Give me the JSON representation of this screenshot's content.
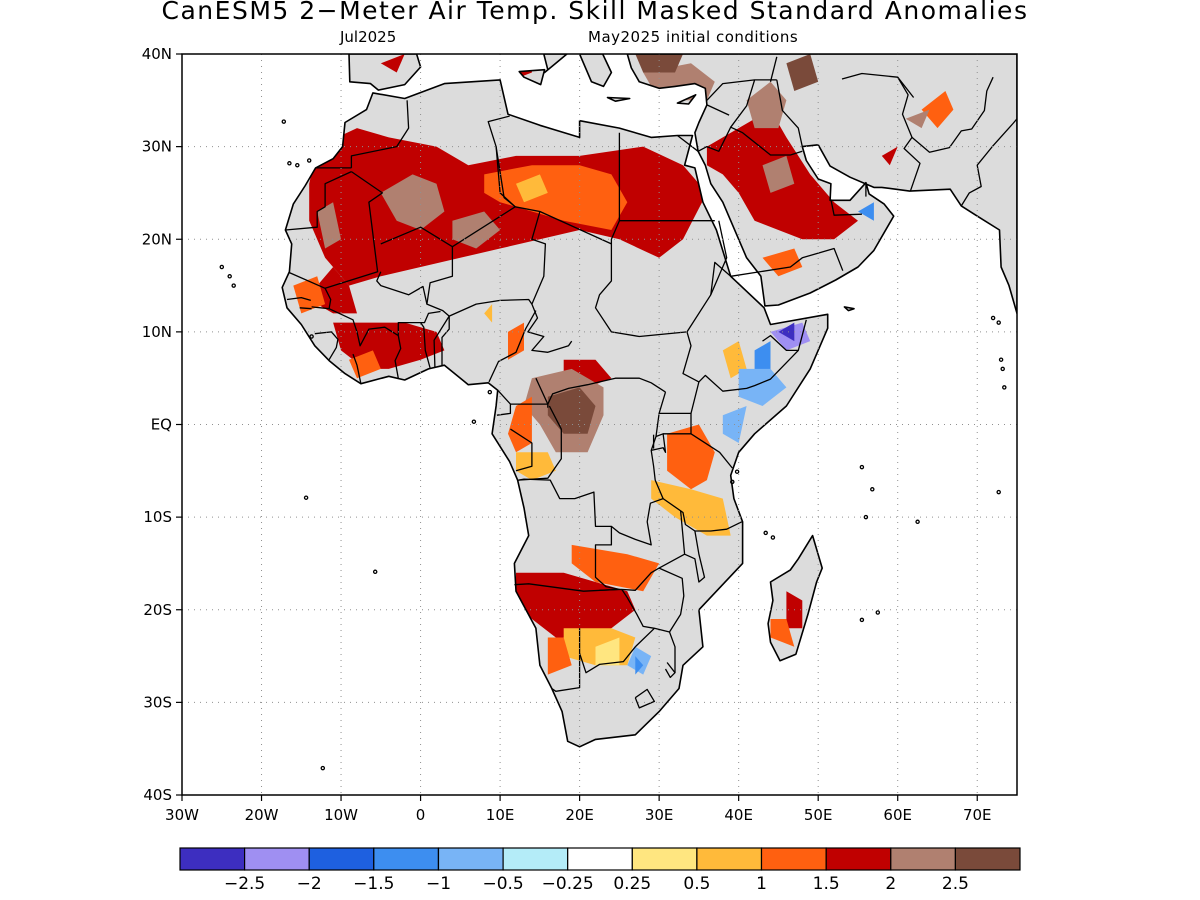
{
  "header": {
    "title": "CanESM5 2−Meter Air Temp. Skill Masked Standard Anomalies",
    "month": "Jul2025",
    "init": "May2025 initial conditions"
  },
  "map": {
    "lat_labels": [
      {
        "lat": 40,
        "label": "40N"
      },
      {
        "lat": 30,
        "label": "30N"
      },
      {
        "lat": 20,
        "label": "20N"
      },
      {
        "lat": 10,
        "label": "10N"
      },
      {
        "lat": 0,
        "label": "EQ"
      },
      {
        "lat": -10,
        "label": "10S"
      },
      {
        "lat": -20,
        "label": "20S"
      },
      {
        "lat": -30,
        "label": "30S"
      },
      {
        "lat": -40,
        "label": "40S"
      }
    ],
    "lon_labels": [
      {
        "lon": -30,
        "label": "30W"
      },
      {
        "lon": -20,
        "label": "20W"
      },
      {
        "lon": -10,
        "label": "10W"
      },
      {
        "lon": 0,
        "label": "0"
      },
      {
        "lon": 10,
        "label": "10E"
      },
      {
        "lon": 20,
        "label": "20E"
      },
      {
        "lon": 30,
        "label": "30E"
      },
      {
        "lon": 40,
        "label": "40E"
      },
      {
        "lon": 50,
        "label": "50E"
      },
      {
        "lon": 60,
        "label": "60E"
      },
      {
        "lon": 70,
        "label": "70E"
      }
    ],
    "colors": {
      "masked": "#dcdcdc",
      "n25": "#3d2ec0",
      "n20": "#9f8ff2",
      "n15": "#1e60e0",
      "n10": "#3d8ef0",
      "n05": "#78b4f6",
      "n025": "#b4ecf8",
      "zero": "#ffffff",
      "p025": "#ffe680",
      "p05": "#ffba3a",
      "p10": "#ff6010",
      "p15": "#c00000",
      "p20": "#b08070",
      "p25": "#7a4a3a"
    },
    "anomaly_regions": [
      {
        "level": "p15",
        "pts": [
          [
            -13,
            30
          ],
          [
            -8,
            32
          ],
          [
            -4,
            31
          ],
          [
            2,
            30
          ],
          [
            6,
            28
          ],
          [
            12,
            29
          ],
          [
            20,
            29
          ],
          [
            28,
            30
          ],
          [
            33,
            28
          ],
          [
            36,
            25
          ],
          [
            33,
            20
          ],
          [
            30,
            18
          ],
          [
            25,
            20
          ],
          [
            20,
            21
          ],
          [
            15,
            20
          ],
          [
            10,
            19
          ],
          [
            5,
            18
          ],
          [
            0,
            17
          ],
          [
            -5,
            16
          ],
          [
            -9,
            15
          ],
          [
            -12,
            18
          ],
          [
            -14,
            22
          ],
          [
            -14,
            26
          ]
        ]
      },
      {
        "level": "p10",
        "pts": [
          [
            8,
            27
          ],
          [
            14,
            28
          ],
          [
            20,
            28
          ],
          [
            24,
            27
          ],
          [
            26,
            24
          ],
          [
            24,
            21
          ],
          [
            18,
            22
          ],
          [
            14,
            23
          ],
          [
            10,
            24
          ],
          [
            8,
            25
          ]
        ]
      },
      {
        "level": "p05",
        "pts": [
          [
            12,
            26
          ],
          [
            15,
            27
          ],
          [
            16,
            25
          ],
          [
            13,
            24
          ]
        ]
      },
      {
        "level": "p20",
        "pts": [
          [
            -5,
            25
          ],
          [
            -1,
            27
          ],
          [
            2,
            26
          ],
          [
            3,
            23
          ],
          [
            0,
            21
          ],
          [
            -3,
            22
          ]
        ]
      },
      {
        "level": "p20",
        "pts": [
          [
            4,
            22
          ],
          [
            8,
            23
          ],
          [
            10,
            21
          ],
          [
            7,
            19
          ],
          [
            4,
            20
          ]
        ]
      },
      {
        "level": "p20",
        "pts": [
          [
            -13,
            23
          ],
          [
            -11,
            24
          ],
          [
            -10,
            20
          ],
          [
            -12,
            19
          ]
        ]
      },
      {
        "level": "p15",
        "pts": [
          [
            36,
            30
          ],
          [
            40,
            32
          ],
          [
            44,
            34
          ],
          [
            46,
            31
          ],
          [
            49,
            27
          ],
          [
            52,
            24
          ],
          [
            55,
            22
          ],
          [
            52,
            20
          ],
          [
            48,
            20
          ],
          [
            45,
            21
          ],
          [
            42,
            22
          ],
          [
            40,
            25
          ],
          [
            38,
            27
          ],
          [
            36,
            28
          ]
        ]
      },
      {
        "level": "p20",
        "pts": [
          [
            41,
            35
          ],
          [
            44,
            37
          ],
          [
            46,
            35
          ],
          [
            45,
            32
          ],
          [
            42,
            32
          ]
        ]
      },
      {
        "level": "p20",
        "pts": [
          [
            43,
            28
          ],
          [
            46,
            29
          ],
          [
            47,
            26
          ],
          [
            44,
            25
          ]
        ]
      },
      {
        "level": "p25",
        "pts": [
          [
            46,
            39
          ],
          [
            49,
            40
          ],
          [
            50,
            37
          ],
          [
            47,
            36
          ]
        ]
      },
      {
        "level": "p20",
        "pts": [
          [
            28,
            38
          ],
          [
            34,
            39
          ],
          [
            37,
            37
          ],
          [
            36,
            35
          ],
          [
            30,
            35
          ]
        ]
      },
      {
        "level": "p25",
        "pts": [
          [
            27,
            40
          ],
          [
            33,
            40
          ],
          [
            32,
            38
          ],
          [
            28,
            38
          ]
        ]
      },
      {
        "level": "p15",
        "pts": [
          [
            10,
            39
          ],
          [
            14,
            40
          ],
          [
            14,
            38
          ],
          [
            11,
            37
          ]
        ]
      },
      {
        "level": "p15",
        "pts": [
          [
            -5,
            39
          ],
          [
            -2,
            40
          ],
          [
            -3,
            38
          ]
        ]
      },
      {
        "level": "p10",
        "pts": [
          [
            63,
            34
          ],
          [
            66,
            36
          ],
          [
            67,
            34
          ],
          [
            65,
            32
          ]
        ]
      },
      {
        "level": "p20",
        "pts": [
          [
            61,
            33
          ],
          [
            64,
            34
          ],
          [
            63,
            32
          ]
        ]
      },
      {
        "level": "p15",
        "pts": [
          [
            58,
            29
          ],
          [
            60,
            30
          ],
          [
            59,
            28
          ]
        ]
      },
      {
        "level": "p10",
        "pts": [
          [
            43,
            18
          ],
          [
            47,
            19
          ],
          [
            48,
            17
          ],
          [
            45,
            16
          ]
        ]
      },
      {
        "level": "p15",
        "pts": [
          [
            -13,
            15
          ],
          [
            -11,
            17
          ],
          [
            -9,
            15
          ],
          [
            -8,
            12
          ],
          [
            -11,
            12
          ],
          [
            -13,
            13
          ]
        ]
      },
      {
        "level": "p10",
        "pts": [
          [
            -16,
            15
          ],
          [
            -13,
            16
          ],
          [
            -12,
            13
          ],
          [
            -15,
            12
          ]
        ]
      },
      {
        "level": "p15",
        "pts": [
          [
            -11,
            11
          ],
          [
            -6,
            11
          ],
          [
            -2,
            11
          ],
          [
            2,
            10
          ],
          [
            3,
            8
          ],
          [
            0,
            7
          ],
          [
            -4,
            6
          ],
          [
            -7,
            6
          ],
          [
            -10,
            8
          ]
        ]
      },
      {
        "level": "p10",
        "pts": [
          [
            -9,
            7
          ],
          [
            -6,
            8
          ],
          [
            -5,
            6
          ],
          [
            -8,
            5
          ]
        ]
      },
      {
        "level": "p10",
        "pts": [
          [
            11,
            10
          ],
          [
            13,
            11
          ],
          [
            13,
            8
          ],
          [
            11,
            7
          ]
        ]
      },
      {
        "level": "p05",
        "pts": [
          [
            8,
            12
          ],
          [
            9,
            13
          ],
          [
            9,
            11
          ]
        ]
      },
      {
        "level": "p15",
        "pts": [
          [
            18,
            7
          ],
          [
            22,
            7
          ],
          [
            24,
            5
          ],
          [
            21,
            4
          ],
          [
            18,
            5
          ]
        ]
      },
      {
        "level": "p20",
        "pts": [
          [
            14,
            5
          ],
          [
            19,
            6
          ],
          [
            23,
            4
          ],
          [
            23,
            1
          ],
          [
            21,
            -3
          ],
          [
            17,
            -3
          ],
          [
            15,
            0
          ],
          [
            13,
            2
          ]
        ]
      },
      {
        "level": "p25",
        "pts": [
          [
            16,
            3
          ],
          [
            20,
            4
          ],
          [
            22,
            2
          ],
          [
            21,
            -1
          ],
          [
            18,
            -1
          ],
          [
            16,
            1
          ]
        ]
      },
      {
        "level": "p10",
        "pts": [
          [
            12,
            2
          ],
          [
            14,
            3
          ],
          [
            14,
            -2
          ],
          [
            12,
            -3
          ],
          [
            11,
            -1
          ]
        ]
      },
      {
        "level": "p05",
        "pts": [
          [
            12,
            -3
          ],
          [
            16,
            -3
          ],
          [
            17,
            -5
          ],
          [
            14,
            -6
          ],
          [
            12,
            -5
          ]
        ]
      },
      {
        "level": "p10",
        "pts": [
          [
            31,
            -1
          ],
          [
            35,
            0
          ],
          [
            37,
            -3
          ],
          [
            36,
            -6
          ],
          [
            34,
            -7
          ],
          [
            31,
            -5
          ]
        ]
      },
      {
        "level": "p05",
        "pts": [
          [
            29,
            -6
          ],
          [
            34,
            -7
          ],
          [
            38,
            -8
          ],
          [
            39,
            -12
          ],
          [
            36,
            -12
          ],
          [
            32,
            -10
          ],
          [
            29,
            -8
          ]
        ]
      },
      {
        "level": "p05",
        "pts": [
          [
            38,
            8
          ],
          [
            40,
            9
          ],
          [
            41,
            6
          ],
          [
            39,
            5
          ]
        ]
      },
      {
        "level": "n10",
        "pts": [
          [
            42,
            8
          ],
          [
            44,
            9
          ],
          [
            44,
            6
          ],
          [
            42,
            5
          ]
        ]
      },
      {
        "level": "n05",
        "pts": [
          [
            40,
            6
          ],
          [
            44,
            6
          ],
          [
            46,
            4
          ],
          [
            43,
            2
          ],
          [
            40,
            3
          ]
        ]
      },
      {
        "level": "n05",
        "pts": [
          [
            38,
            1
          ],
          [
            41,
            2
          ],
          [
            40,
            -2
          ],
          [
            38,
            -1
          ]
        ]
      },
      {
        "level": "n20",
        "pts": [
          [
            44,
            10
          ],
          [
            48,
            11
          ],
          [
            49,
            9
          ],
          [
            46,
            8
          ]
        ]
      },
      {
        "level": "n25",
        "pts": [
          [
            45,
            10
          ],
          [
            47,
            11
          ],
          [
            47,
            9
          ]
        ]
      },
      {
        "level": "n10",
        "pts": [
          [
            55,
            23
          ],
          [
            57,
            24
          ],
          [
            57,
            22
          ]
        ]
      },
      {
        "level": "p15",
        "pts": [
          [
            12,
            -16
          ],
          [
            18,
            -16
          ],
          [
            22,
            -17
          ],
          [
            26,
            -18
          ],
          [
            27,
            -20
          ],
          [
            24,
            -22
          ],
          [
            20,
            -23
          ],
          [
            17,
            -23
          ],
          [
            14,
            -21
          ],
          [
            12,
            -19
          ]
        ]
      },
      {
        "level": "p10",
        "pts": [
          [
            19,
            -13
          ],
          [
            26,
            -14
          ],
          [
            30,
            -15
          ],
          [
            28,
            -18
          ],
          [
            22,
            -17
          ],
          [
            19,
            -15
          ]
        ]
      },
      {
        "level": "p05",
        "pts": [
          [
            18,
            -22
          ],
          [
            24,
            -22
          ],
          [
            27,
            -23
          ],
          [
            26,
            -26
          ],
          [
            22,
            -26
          ],
          [
            18,
            -25
          ]
        ]
      },
      {
        "level": "p10",
        "pts": [
          [
            16,
            -23
          ],
          [
            18,
            -23
          ],
          [
            19,
            -26
          ],
          [
            16,
            -27
          ]
        ]
      },
      {
        "level": "p025",
        "pts": [
          [
            22,
            -24
          ],
          [
            25,
            -23
          ],
          [
            25,
            -26
          ],
          [
            22,
            -26
          ]
        ]
      },
      {
        "level": "n05",
        "pts": [
          [
            27,
            -24
          ],
          [
            29,
            -25
          ],
          [
            28,
            -27
          ],
          [
            26,
            -26
          ]
        ]
      },
      {
        "level": "n10",
        "pts": [
          [
            27,
            -25
          ],
          [
            28,
            -26
          ],
          [
            27,
            -27
          ]
        ]
      },
      {
        "level": "p15",
        "pts": [
          [
            46,
            -18
          ],
          [
            48,
            -19
          ],
          [
            48,
            -22
          ],
          [
            46,
            -22
          ]
        ]
      },
      {
        "level": "p10",
        "pts": [
          [
            44,
            -21
          ],
          [
            46,
            -21
          ],
          [
            47,
            -24
          ],
          [
            44,
            -23
          ]
        ]
      }
    ]
  },
  "colorbar": {
    "labels": [
      "−2.5",
      "−2",
      "−1.5",
      "−1",
      "−0.5",
      "−0.25",
      "0.25",
      "0.5",
      "1",
      "1.5",
      "2",
      "2.5"
    ],
    "colors": [
      "#3d2ec0",
      "#9f8ff2",
      "#1e60e0",
      "#3d8ef0",
      "#78b4f6",
      "#b4ecf8",
      "#ffffff",
      "#ffe680",
      "#ffba3a",
      "#ff6010",
      "#c00000",
      "#b08070",
      "#7a4a3a"
    ]
  }
}
